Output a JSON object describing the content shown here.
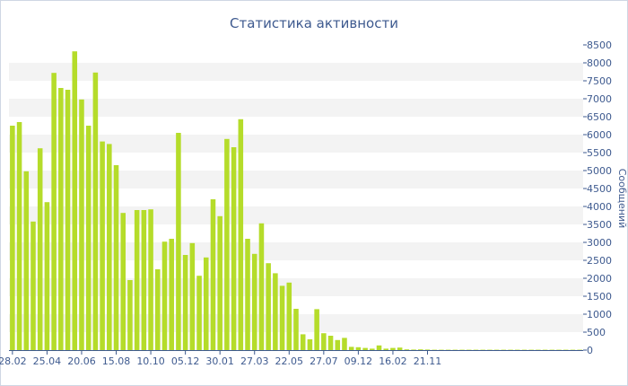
{
  "chart_data": {
    "type": "bar",
    "title": "Статистика активности",
    "xlabel": "",
    "ylabel": "Сообщений",
    "ylim": [
      0,
      8500
    ],
    "yticks": [
      0,
      500,
      1000,
      1500,
      2000,
      2500,
      3000,
      3500,
      4000,
      4500,
      5000,
      5500,
      6000,
      6500,
      7000,
      7500,
      8000,
      8500
    ],
    "y_axis_side": "right",
    "grid": "alternating horizontal bands",
    "x_tick_labels": [
      "28.02",
      "25.04",
      "20.06",
      "15.08",
      "10.10",
      "05.12",
      "30.01",
      "27.03",
      "22.05",
      "27.07",
      "09.12",
      "16.02",
      "21.11"
    ],
    "x_tick_bar_index": [
      0,
      5,
      10,
      15,
      20,
      25,
      30,
      35,
      40,
      45,
      50,
      55,
      60
    ],
    "values": [
      6250,
      6350,
      4980,
      3580,
      5620,
      4120,
      7720,
      7300,
      7250,
      8320,
      6980,
      6250,
      7730,
      5810,
      5740,
      5150,
      3820,
      1950,
      3900,
      3900,
      3920,
      2250,
      3020,
      3100,
      6050,
      2650,
      2980,
      2070,
      2580,
      4200,
      3730,
      5880,
      5650,
      6430,
      3100,
      2680,
      3530,
      2420,
      2140,
      1790,
      1880,
      1150,
      440,
      300,
      1140,
      470,
      400,
      280,
      340,
      90,
      80,
      60,
      40,
      130,
      40,
      60,
      70,
      20,
      15,
      20,
      15,
      10,
      10,
      10,
      10,
      10,
      10,
      10,
      10,
      10,
      10,
      10,
      10,
      10,
      10,
      10,
      10,
      10,
      10,
      10,
      10,
      10,
      10
    ],
    "bar_color": "#b5dc2a",
    "band_color": "#f3f3f3",
    "text_color": "#3e5a8f"
  }
}
